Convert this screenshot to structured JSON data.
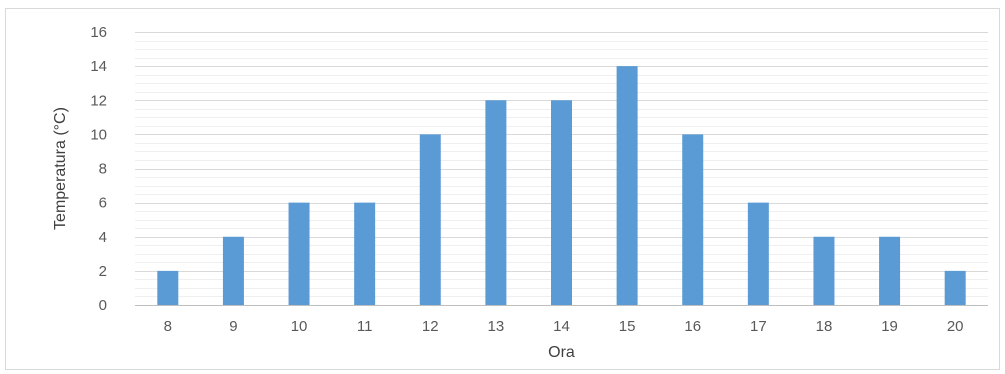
{
  "chart_data": {
    "type": "bar",
    "categories": [
      "8",
      "9",
      "10",
      "11",
      "12",
      "13",
      "14",
      "15",
      "16",
      "17",
      "18",
      "19",
      "20"
    ],
    "series": [
      {
        "values": [
          2,
          4,
          6,
          6,
          10,
          12,
          12,
          14,
          10,
          6,
          4,
          4,
          2
        ]
      }
    ],
    "xlabel": "Ora",
    "ylabel": "Temperatura (°C)",
    "ylim": [
      0,
      16
    ],
    "yticks": [
      "0",
      "2",
      "4",
      "6",
      "8",
      "10",
      "12",
      "14",
      "16"
    ],
    "grid": true,
    "legend": "none",
    "colors": {
      "bar": "#5b9bd5",
      "major_grid": "#d9d9d9",
      "minor_grid": "#efefef",
      "axis": "#bfbfbf"
    }
  }
}
